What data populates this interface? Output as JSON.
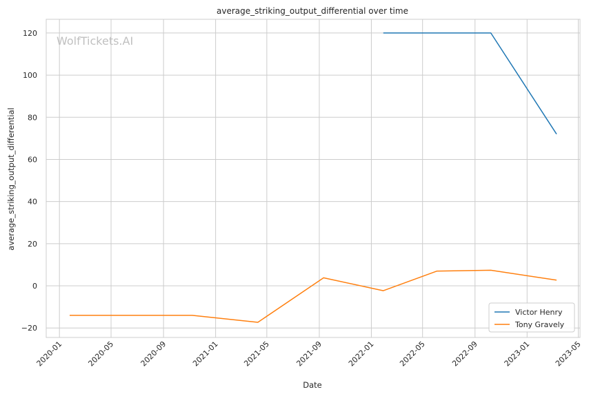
{
  "chart_data": {
    "type": "line",
    "title": "average_striking_output_differential over time",
    "xlabel": "Date",
    "ylabel": "average_striking_output_differential",
    "watermark": "WolfTickets.AI",
    "x_ticks": [
      "2020-01",
      "2020-05",
      "2020-09",
      "2021-01",
      "2021-05",
      "2021-09",
      "2022-01",
      "2022-05",
      "2022-09",
      "2023-01",
      "2023-05"
    ],
    "y_ticks": [
      -20,
      0,
      20,
      40,
      60,
      80,
      100,
      120
    ],
    "xlim": [
      "2019-12-01",
      "2023-05-05"
    ],
    "ylim": [
      -24.5,
      126.5
    ],
    "grid": true,
    "legend_position": "bottom-right",
    "series": [
      {
        "name": "Victor Henry",
        "color": "#1f77b4",
        "points": [
          {
            "x": "2022-01-29",
            "y": 120
          },
          {
            "x": "2022-10-08",
            "y": 120
          },
          {
            "x": "2023-03-11",
            "y": 72
          }
        ]
      },
      {
        "name": "Tony Gravely",
        "color": "#ff7f0e",
        "points": [
          {
            "x": "2020-01-25",
            "y": -14
          },
          {
            "x": "2020-11-07",
            "y": -14
          },
          {
            "x": "2021-04-10",
            "y": -17.3
          },
          {
            "x": "2021-09-11",
            "y": 3.8
          },
          {
            "x": "2022-01-29",
            "y": -2.3
          },
          {
            "x": "2022-06-04",
            "y": 7
          },
          {
            "x": "2022-10-08",
            "y": 7.4
          },
          {
            "x": "2023-03-11",
            "y": 2.7
          }
        ]
      }
    ]
  }
}
